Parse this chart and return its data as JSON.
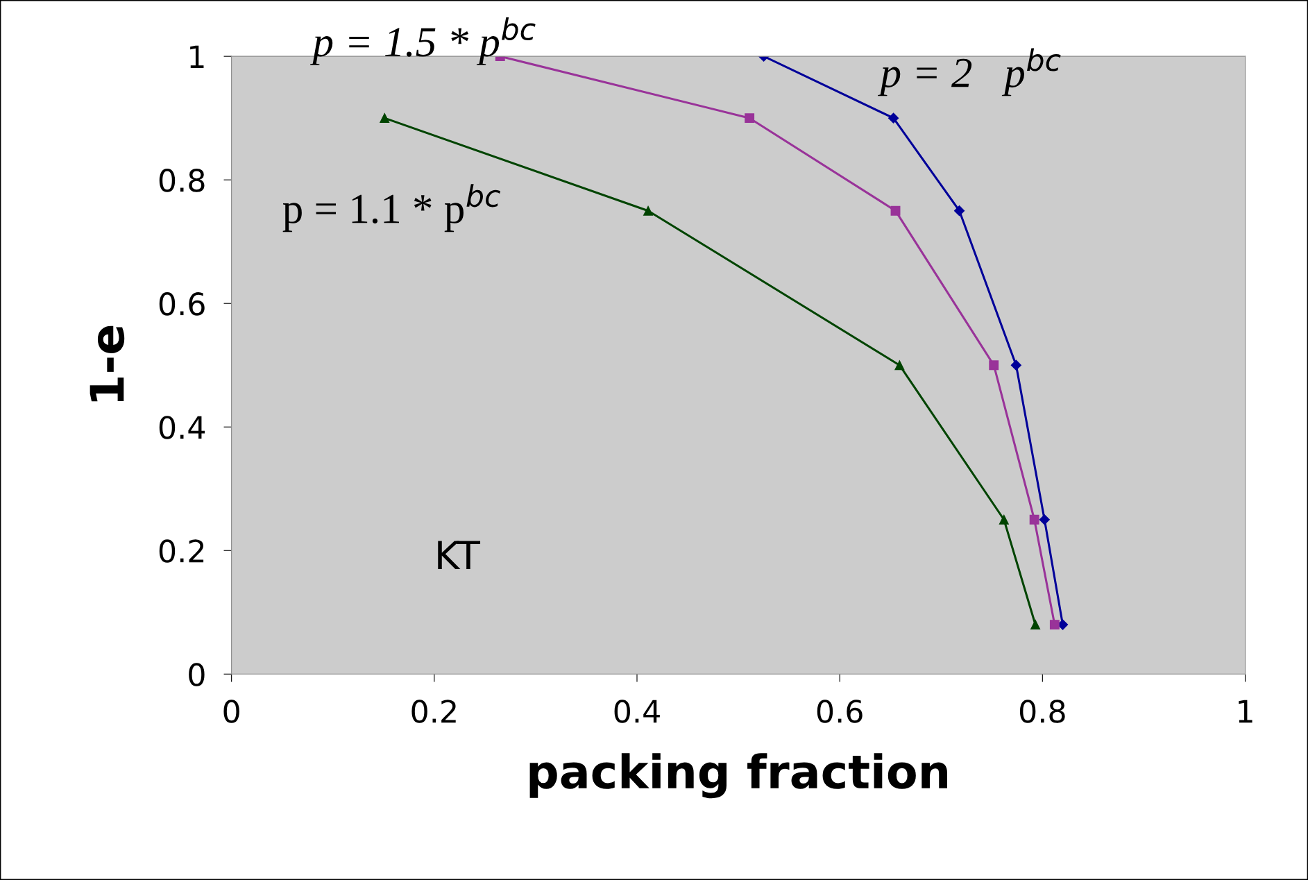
{
  "chart_data": {
    "type": "line",
    "xlabel": "packing fraction",
    "ylabel": "1-e",
    "xlim": [
      0,
      1
    ],
    "ylim": [
      0,
      1
    ],
    "xticks": [
      0,
      0.2,
      0.4,
      0.6,
      0.8,
      1
    ],
    "yticks": [
      0,
      0.2,
      0.4,
      0.6,
      0.8,
      1
    ],
    "grid": false,
    "legend": false,
    "series": [
      {
        "color": "#000099",
        "marker": "diamond",
        "x": [
          0.525,
          0.653,
          0.718,
          0.774,
          0.802,
          0.82
        ],
        "values": [
          1,
          0.9,
          0.75,
          0.5,
          0.25,
          0.08
        ]
      },
      {
        "color": "#993399",
        "marker": "square",
        "x": [
          0.265,
          0.511,
          0.655,
          0.752,
          0.792,
          0.812
        ],
        "values": [
          1,
          0.9,
          0.75,
          0.5,
          0.25,
          0.08
        ]
      },
      {
        "color": "#004400",
        "marker": "triangle",
        "x": [
          0.151,
          0.411,
          0.659,
          0.762,
          0.793
        ],
        "values": [
          0.9,
          0.75,
          0.5,
          0.25,
          0.08
        ]
      }
    ],
    "annotations": [
      "p = 1.5 * p$^{bc}$",
      "p = 2   p$^{bc}$",
      "p = 1.1 * p$^{bc}$",
      "KT"
    ]
  }
}
